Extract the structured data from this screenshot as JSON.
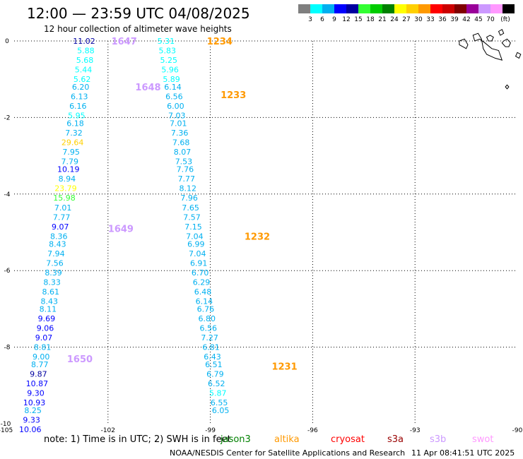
{
  "header": {
    "title": "12:00 — 23:59 UTC 04/08/2025",
    "subtitle": "12 hour collection of altimeter wave heights"
  },
  "colorbar": {
    "colors": [
      "#7f7f7f",
      "#00ffff",
      "#00b0f0",
      "#0000ff",
      "#0000a0",
      "#33ff33",
      "#00cc00",
      "#008000",
      "#ffff00",
      "#ffd000",
      "#ff9900",
      "#ff0000",
      "#cc0000",
      "#800000",
      "#990099",
      "#cc99ff",
      "#ff99ff",
      "#000000"
    ],
    "labels": [
      "3",
      "6",
      "9",
      "12",
      "15",
      "18",
      "21",
      "24",
      "27",
      "30",
      "33",
      "36",
      "39",
      "42",
      "45",
      "70"
    ],
    "unit": "(ft)"
  },
  "chart_data": {
    "type": "scatter",
    "title": "12:00 — 23:59 UTC 04/08/2025",
    "subtitle": "12 hour collection of altimeter wave heights",
    "xlabel": "",
    "ylabel": "",
    "xlim": [
      -105,
      -90
    ],
    "ylim": [
      -10,
      0
    ],
    "grid": true,
    "x_ticks": [
      -105,
      -102,
      -99,
      -96,
      -93,
      -90
    ],
    "x_tick_labels": [
      "-105",
      "-102",
      "-99",
      "-96",
      "-93",
      "-90"
    ],
    "y_ticks": [
      0,
      -2,
      -4,
      -6,
      -8,
      -10
    ],
    "y_tick_labels": [
      "0",
      "-2",
      "-4",
      "-6",
      "-8",
      "-10"
    ],
    "passes": [
      {
        "label": "1647",
        "satellite": "s3b",
        "lon": -101.9,
        "lat": 0.0
      },
      {
        "label": "1648",
        "satellite": "s3b",
        "lon": -101.2,
        "lat": -1.2
      },
      {
        "label": "1649",
        "satellite": "s3b",
        "lon": -102.0,
        "lat": -4.9
      },
      {
        "label": "1650",
        "satellite": "s3b",
        "lon": -103.2,
        "lat": -8.3
      },
      {
        "label": "1234",
        "satellite": "altika",
        "lon": -99.1,
        "lat": 0.0
      },
      {
        "label": "1233",
        "satellite": "altika",
        "lon": -98.7,
        "lat": -1.4
      },
      {
        "label": "1232",
        "satellite": "altika",
        "lon": -98.0,
        "lat": -5.1
      },
      {
        "label": "1231",
        "satellite": "altika",
        "lon": -97.2,
        "lat": -8.5
      }
    ],
    "series": [
      {
        "name": "",
        "points": [
          {
            "lon": -102.7,
            "lat": 0.0,
            "v": "11.02",
            "c": "#0000a0"
          },
          {
            "lon": -102.65,
            "lat": -0.25,
            "v": "5.88",
            "c": "#00ffff"
          },
          {
            "lon": -102.68,
            "lat": -0.5,
            "v": "5.68",
            "c": "#00ffff"
          },
          {
            "lon": -102.72,
            "lat": -0.75,
            "v": "5.44",
            "c": "#00ffff"
          },
          {
            "lon": -102.76,
            "lat": -1.0,
            "v": "5.62",
            "c": "#00ffff"
          },
          {
            "lon": -102.8,
            "lat": -1.2,
            "v": "6.20",
            "c": "#00b0f0"
          },
          {
            "lon": -102.84,
            "lat": -1.45,
            "v": "6.13",
            "c": "#00b0f0"
          },
          {
            "lon": -102.88,
            "lat": -1.7,
            "v": "6.16",
            "c": "#00b0f0"
          },
          {
            "lon": -102.92,
            "lat": -1.95,
            "v": "5.95",
            "c": "#00ffff"
          },
          {
            "lon": -102.96,
            "lat": -2.15,
            "v": "6.18",
            "c": "#00b0f0"
          },
          {
            "lon": -103.0,
            "lat": -2.4,
            "v": "7.32",
            "c": "#00b0f0"
          },
          {
            "lon": -103.04,
            "lat": -2.65,
            "v": "29.64",
            "c": "#ffd000"
          },
          {
            "lon": -103.08,
            "lat": -2.9,
            "v": "7.95",
            "c": "#00b0f0"
          },
          {
            "lon": -103.12,
            "lat": -3.15,
            "v": "7.79",
            "c": "#00b0f0"
          },
          {
            "lon": -103.16,
            "lat": -3.35,
            "v": "10.19",
            "c": "#0000ff"
          },
          {
            "lon": -103.2,
            "lat": -3.6,
            "v": "8.94",
            "c": "#00b0f0"
          },
          {
            "lon": -103.24,
            "lat": -3.85,
            "v": "23.79",
            "c": "#ffff00"
          },
          {
            "lon": -103.28,
            "lat": -4.1,
            "v": "15.98",
            "c": "#33ff33"
          },
          {
            "lon": -103.32,
            "lat": -4.35,
            "v": "7.01",
            "c": "#00b0f0"
          },
          {
            "lon": -103.36,
            "lat": -4.6,
            "v": "7.77",
            "c": "#00b0f0"
          },
          {
            "lon": -103.4,
            "lat": -4.85,
            "v": "9.07",
            "c": "#0000ff"
          },
          {
            "lon": -103.44,
            "lat": -5.1,
            "v": "8.36",
            "c": "#00b0f0"
          },
          {
            "lon": -103.48,
            "lat": -5.3,
            "v": "8.43",
            "c": "#00b0f0"
          },
          {
            "lon": -103.52,
            "lat": -5.55,
            "v": "7.94",
            "c": "#00b0f0"
          },
          {
            "lon": -103.56,
            "lat": -5.8,
            "v": "7.56",
            "c": "#00b0f0"
          },
          {
            "lon": -103.6,
            "lat": -6.05,
            "v": "8.39",
            "c": "#00b0f0"
          },
          {
            "lon": -103.64,
            "lat": -6.3,
            "v": "8.33",
            "c": "#00b0f0"
          },
          {
            "lon": -103.68,
            "lat": -6.55,
            "v": "8.61",
            "c": "#00b0f0"
          },
          {
            "lon": -103.72,
            "lat": -6.8,
            "v": "8.43",
            "c": "#00b0f0"
          },
          {
            "lon": -103.76,
            "lat": -7.0,
            "v": "8.11",
            "c": "#00b0f0"
          },
          {
            "lon": -103.8,
            "lat": -7.25,
            "v": "9.69",
            "c": "#0000ff"
          },
          {
            "lon": -103.84,
            "lat": -7.5,
            "v": "9.06",
            "c": "#0000ff"
          },
          {
            "lon": -103.88,
            "lat": -7.75,
            "v": "9.07",
            "c": "#0000ff"
          },
          {
            "lon": -103.92,
            "lat": -8.0,
            "v": "8.81",
            "c": "#00b0f0"
          },
          {
            "lon": -103.96,
            "lat": -8.25,
            "v": "9.00",
            "c": "#00b0f0"
          },
          {
            "lon": -104.0,
            "lat": -8.45,
            "v": "8.77",
            "c": "#00b0f0"
          },
          {
            "lon": -104.04,
            "lat": -8.7,
            "v": "9.87",
            "c": "#0000a0"
          },
          {
            "lon": -104.08,
            "lat": -8.95,
            "v": "10.87",
            "c": "#0000ff"
          },
          {
            "lon": -104.12,
            "lat": -9.2,
            "v": "9.30",
            "c": "#0000ff"
          },
          {
            "lon": -104.16,
            "lat": -9.45,
            "v": "10.93",
            "c": "#0000ff"
          },
          {
            "lon": -104.2,
            "lat": -9.65,
            "v": "8.25",
            "c": "#00b0f0"
          },
          {
            "lon": -104.24,
            "lat": -9.9,
            "v": "9.33",
            "c": "#0000ff"
          },
          {
            "lon": -104.28,
            "lat": -10.15,
            "v": "10.06",
            "c": "#0000ff"
          }
        ]
      },
      {
        "name": "",
        "points": [
          {
            "lon": -100.3,
            "lat": 0.0,
            "v": "5.31",
            "c": "#00ffff"
          },
          {
            "lon": -100.26,
            "lat": -0.25,
            "v": "5.83",
            "c": "#00ffff"
          },
          {
            "lon": -100.22,
            "lat": -0.5,
            "v": "5.25",
            "c": "#00ffff"
          },
          {
            "lon": -100.18,
            "lat": -0.75,
            "v": "5.96",
            "c": "#00ffff"
          },
          {
            "lon": -100.14,
            "lat": -1.0,
            "v": "5.89",
            "c": "#00ffff"
          },
          {
            "lon": -100.1,
            "lat": -1.2,
            "v": "6.14",
            "c": "#00b0f0"
          },
          {
            "lon": -100.06,
            "lat": -1.45,
            "v": "6.56",
            "c": "#00b0f0"
          },
          {
            "lon": -100.02,
            "lat": -1.7,
            "v": "6.00",
            "c": "#00b0f0"
          },
          {
            "lon": -99.98,
            "lat": -1.95,
            "v": "7.03",
            "c": "#00b0f0"
          },
          {
            "lon": -99.94,
            "lat": -2.15,
            "v": "7.01",
            "c": "#00b0f0"
          },
          {
            "lon": -99.9,
            "lat": -2.4,
            "v": "7.36",
            "c": "#00b0f0"
          },
          {
            "lon": -99.86,
            "lat": -2.65,
            "v": "7.68",
            "c": "#00b0f0"
          },
          {
            "lon": -99.82,
            "lat": -2.9,
            "v": "8.07",
            "c": "#00b0f0"
          },
          {
            "lon": -99.78,
            "lat": -3.15,
            "v": "7.53",
            "c": "#00b0f0"
          },
          {
            "lon": -99.74,
            "lat": -3.35,
            "v": "7.76",
            "c": "#00b0f0"
          },
          {
            "lon": -99.7,
            "lat": -3.6,
            "v": "7.77",
            "c": "#00b0f0"
          },
          {
            "lon": -99.66,
            "lat": -3.85,
            "v": "8.12",
            "c": "#00b0f0"
          },
          {
            "lon": -99.62,
            "lat": -4.1,
            "v": "7.96",
            "c": "#00b0f0"
          },
          {
            "lon": -99.58,
            "lat": -4.35,
            "v": "7.65",
            "c": "#00b0f0"
          },
          {
            "lon": -99.54,
            "lat": -4.6,
            "v": "7.57",
            "c": "#00b0f0"
          },
          {
            "lon": -99.5,
            "lat": -4.85,
            "v": "7.15",
            "c": "#00b0f0"
          },
          {
            "lon": -99.46,
            "lat": -5.1,
            "v": "7.04",
            "c": "#00b0f0"
          },
          {
            "lon": -99.42,
            "lat": -5.3,
            "v": "6.99",
            "c": "#00b0f0"
          },
          {
            "lon": -99.38,
            "lat": -5.55,
            "v": "7.04",
            "c": "#00b0f0"
          },
          {
            "lon": -99.34,
            "lat": -5.8,
            "v": "6.91",
            "c": "#00b0f0"
          },
          {
            "lon": -99.3,
            "lat": -6.05,
            "v": "6.70",
            "c": "#00b0f0"
          },
          {
            "lon": -99.26,
            "lat": -6.3,
            "v": "6.29",
            "c": "#00b0f0"
          },
          {
            "lon": -99.22,
            "lat": -6.55,
            "v": "6.48",
            "c": "#00b0f0"
          },
          {
            "lon": -99.18,
            "lat": -6.8,
            "v": "6.14",
            "c": "#00b0f0"
          },
          {
            "lon": -99.14,
            "lat": -7.0,
            "v": "6.76",
            "c": "#00b0f0"
          },
          {
            "lon": -99.1,
            "lat": -7.25,
            "v": "6.80",
            "c": "#00b0f0"
          },
          {
            "lon": -99.06,
            "lat": -7.5,
            "v": "6.56",
            "c": "#00b0f0"
          },
          {
            "lon": -99.02,
            "lat": -7.75,
            "v": "7.27",
            "c": "#00b0f0"
          },
          {
            "lon": -98.98,
            "lat": -8.0,
            "v": "6.81",
            "c": "#00b0f0"
          },
          {
            "lon": -98.94,
            "lat": -8.25,
            "v": "6.43",
            "c": "#00b0f0"
          },
          {
            "lon": -98.9,
            "lat": -8.45,
            "v": "6.51",
            "c": "#00b0f0"
          },
          {
            "lon": -98.86,
            "lat": -8.7,
            "v": "6.79",
            "c": "#00b0f0"
          },
          {
            "lon": -98.82,
            "lat": -8.95,
            "v": "6.52",
            "c": "#00b0f0"
          },
          {
            "lon": -98.78,
            "lat": -9.2,
            "v": "5.87",
            "c": "#00ffff"
          },
          {
            "lon": -98.74,
            "lat": -9.45,
            "v": "6.55",
            "c": "#00b0f0"
          },
          {
            "lon": -98.7,
            "lat": -9.65,
            "v": "6.05",
            "c": "#00b0f0"
          }
        ]
      }
    ]
  },
  "map": {
    "lon_range": [
      -92.0,
      -90.0
    ],
    "lat_range": [
      -1.5,
      0.5
    ],
    "islands": [
      [
        [
          -91.7,
          0.0
        ],
        [
          -91.55,
          0.05
        ],
        [
          -91.45,
          -0.1
        ],
        [
          -91.5,
          -0.2
        ],
        [
          -91.6,
          -0.15
        ],
        [
          -91.7,
          -0.1
        ]
      ],
      [
        [
          -91.3,
          0.15
        ],
        [
          -91.15,
          0.2
        ],
        [
          -91.05,
          0.05
        ],
        [
          -91.0,
          -0.2
        ],
        [
          -90.9,
          -0.35
        ],
        [
          -90.65,
          -0.45
        ],
        [
          -90.45,
          -0.5
        ],
        [
          -90.55,
          -0.25
        ],
        [
          -90.75,
          -0.2
        ],
        [
          -90.95,
          -0.05
        ],
        [
          -91.1,
          0.05
        ],
        [
          -91.25,
          0.0
        ]
      ],
      [
        [
          -90.9,
          0.1
        ],
        [
          -90.8,
          0.15
        ],
        [
          -90.7,
          0.1
        ],
        [
          -90.75,
          0.0
        ],
        [
          -90.85,
          0.0
        ]
      ],
      [
        [
          -90.4,
          0.0
        ],
        [
          -90.3,
          0.05
        ],
        [
          -90.2,
          -0.05
        ],
        [
          -90.25,
          -0.15
        ],
        [
          -90.35,
          -0.15
        ],
        [
          -90.45,
          -0.05
        ]
      ],
      [
        [
          -90.55,
          0.25
        ],
        [
          -90.45,
          0.3
        ],
        [
          -90.4,
          0.2
        ],
        [
          -90.5,
          0.15
        ]
      ],
      [
        [
          -90.05,
          -0.4
        ],
        [
          -89.95,
          -0.45
        ],
        [
          -89.9,
          -0.35
        ],
        [
          -90.0,
          -0.3
        ]
      ],
      [
        [
          -90.35,
          -1.2
        ],
        [
          -90.3,
          -1.25
        ],
        [
          -90.25,
          -1.2
        ],
        [
          -90.3,
          -1.15
        ]
      ]
    ]
  },
  "footer": {
    "note_prefix": "note: 1) Time is in UTC; 2) SWH is in feet",
    "satellites": [
      {
        "name": "jason3",
        "color": "#008000"
      },
      {
        "name": "altika",
        "color": "#ff9900"
      },
      {
        "name": "cryosat",
        "color": "#ff0000"
      },
      {
        "name": "s3a",
        "color": "#990000"
      },
      {
        "name": "s3b",
        "color": "#cc99ff"
      },
      {
        "name": "swot",
        "color": "#ff99ff"
      }
    ],
    "credit": "NOAA/NESDIS Center for Satellite Applications and Research",
    "timestamp": "11 Apr 08:41:51 UTC 2025"
  }
}
